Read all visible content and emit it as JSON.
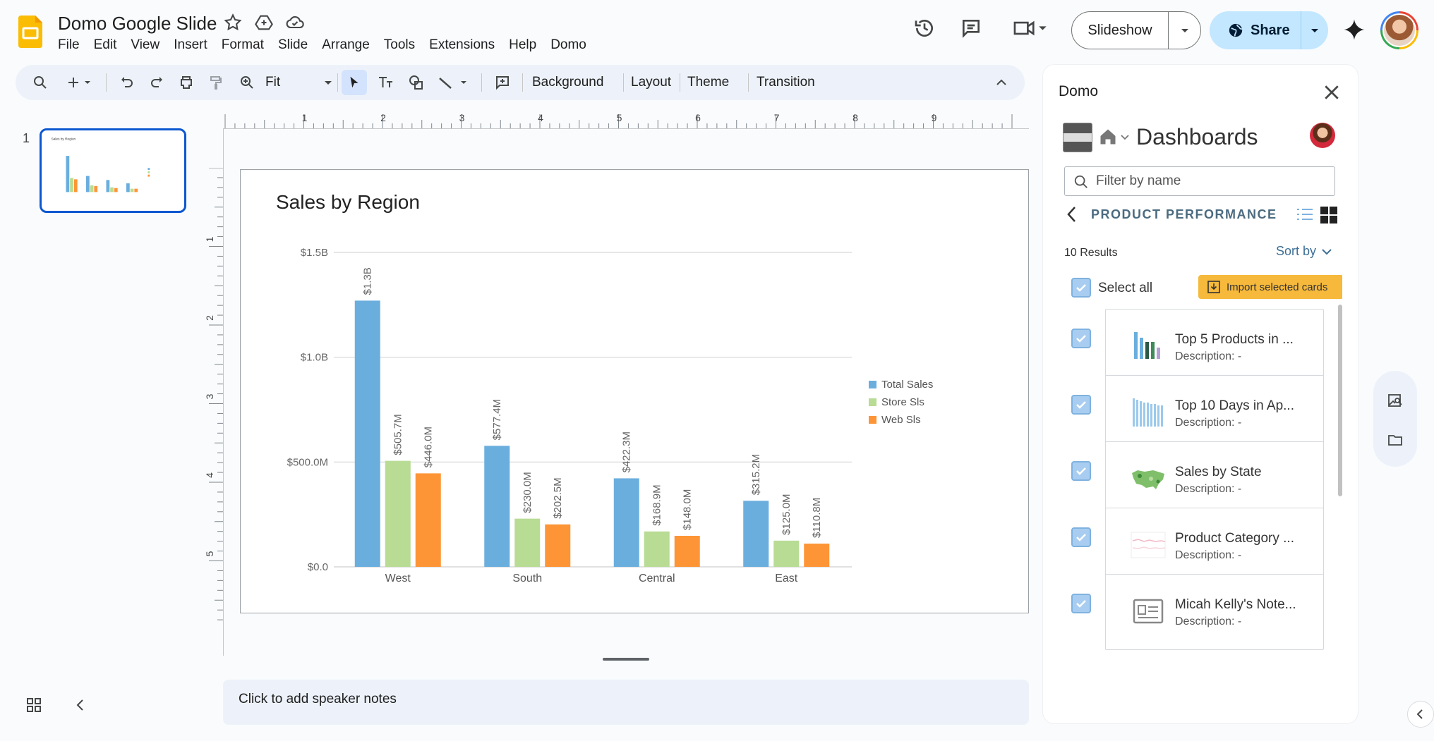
{
  "doc": {
    "title": "Domo Google Slide"
  },
  "menu": [
    "File",
    "Edit",
    "View",
    "Insert",
    "Format",
    "Slide",
    "Arrange",
    "Tools",
    "Extensions",
    "Help",
    "Domo"
  ],
  "header": {
    "slideshow_label": "Slideshow",
    "share_label": "Share"
  },
  "toolbar": {
    "zoom": "Fit",
    "background": "Background",
    "layout": "Layout",
    "theme": "Theme",
    "transition": "Transition"
  },
  "filmstrip": {
    "slide_number": "1"
  },
  "ruler": {
    "h_labels": [
      "1",
      "2",
      "3",
      "4",
      "5",
      "6",
      "7",
      "8",
      "9"
    ],
    "v_labels": [
      "1",
      "2",
      "3",
      "4",
      "5"
    ]
  },
  "notes": {
    "placeholder": "Click to add speaker notes"
  },
  "chart_data": {
    "type": "bar",
    "title": "Sales by Region",
    "categories": [
      "West",
      "South",
      "Central",
      "East"
    ],
    "series": [
      {
        "name": "Total Sales",
        "color": "#6aaede",
        "values": [
          1270,
          577.4,
          422.3,
          315.2
        ],
        "labels": [
          "$1.3B",
          "$577.4M",
          "$422.3M",
          "$315.2M"
        ]
      },
      {
        "name": "Store Sls",
        "color": "#b8dc94",
        "values": [
          505.7,
          230.0,
          168.9,
          125.0
        ],
        "labels": [
          "$505.7M",
          "$230.0M",
          "$168.9M",
          "$125.0M"
        ]
      },
      {
        "name": "Web Sls",
        "color": "#fd9536",
        "values": [
          446.0,
          202.5,
          148.0,
          110.8
        ],
        "labels": [
          "$446.0M",
          "$202.5M",
          "$148.0M",
          "$110.8M"
        ]
      }
    ],
    "y_ticks": [
      {
        "value": 0,
        "label": "$0.0"
      },
      {
        "value": 500,
        "label": "$500.0M"
      },
      {
        "value": 1000,
        "label": "$1.0B"
      },
      {
        "value": 1500,
        "label": "$1.5B"
      }
    ],
    "ylim": [
      0,
      1500
    ],
    "legend": "right",
    "grid": true
  },
  "side_panel": {
    "title": "Domo",
    "dashboards_title": "Dashboards",
    "filter_placeholder": "Filter by name",
    "section": "PRODUCT PERFORMANCE",
    "results": "10 Results",
    "sort_label": "Sort by",
    "select_all": "Select all",
    "import_label": "Import selected cards",
    "cards": [
      {
        "title": "Top 5 Products in ...",
        "description": "Description: -",
        "thumb": "bar-chart"
      },
      {
        "title": "Top 10 Days in Ap...",
        "description": "Description: -",
        "thumb": "column-chart"
      },
      {
        "title": "Sales by State",
        "description": "Description: -",
        "thumb": "map"
      },
      {
        "title": "Product Category ...",
        "description": "Description: -",
        "thumb": "line-chart"
      },
      {
        "title": "Micah Kelly's Note...",
        "description": "Description: -",
        "thumb": "notebook"
      }
    ]
  }
}
